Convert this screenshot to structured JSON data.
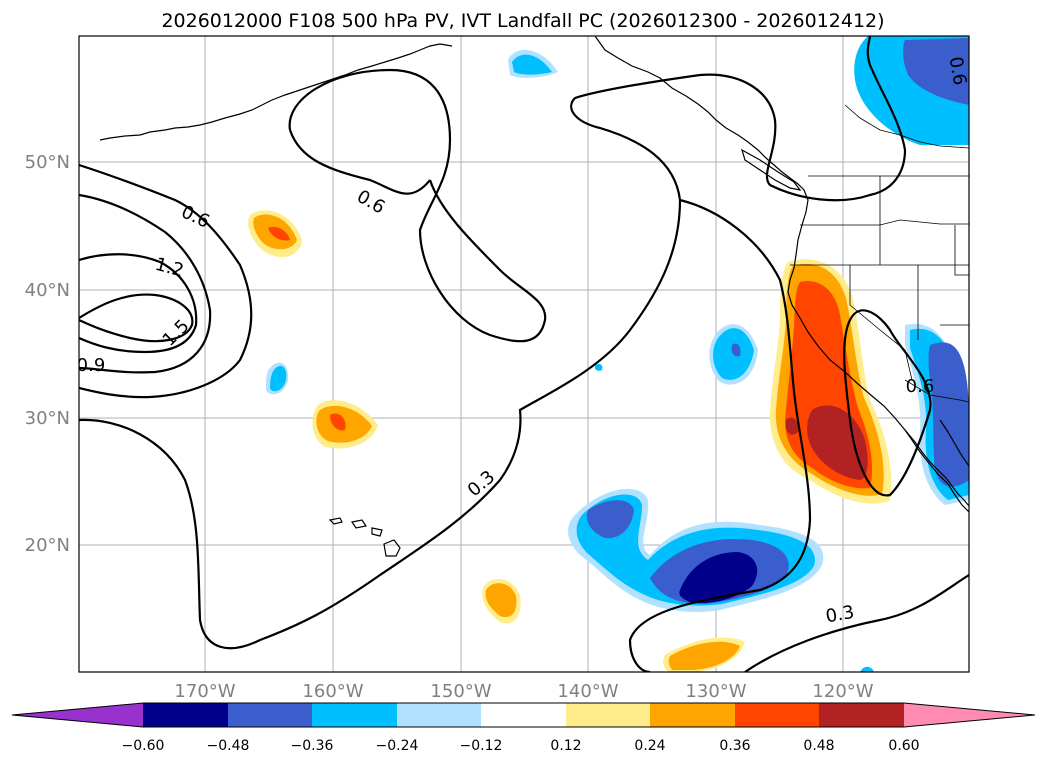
{
  "title": "2026012000 F108 500 hPa PV, IVT Landfall PC (2026012300 - 2026012412)",
  "lat_labels": [
    "50°N",
    "40°N",
    "30°N",
    "20°N"
  ],
  "lon_labels": [
    "170°W",
    "160°W",
    "150°W",
    "140°W",
    "130°W",
    "120°W"
  ],
  "contour_labels": [
    "0.6",
    "0.6",
    "1.2",
    "1.5",
    "0.9",
    "0.3",
    "0.3",
    "0.6",
    "0.6"
  ],
  "colorbar": {
    "ticks": [
      "−0.60",
      "−0.48",
      "−0.36",
      "−0.24",
      "−0.12",
      "0.12",
      "0.24",
      "0.36",
      "0.48",
      "0.60"
    ],
    "colors": [
      "#9932cc",
      "#00008b",
      "#3a5fcd",
      "#00bfff",
      "#b0e2ff",
      "#ffffff",
      "#ffec8b",
      "#ffa500",
      "#ff4500",
      "#b22222",
      "#ff8cb0"
    ]
  }
}
